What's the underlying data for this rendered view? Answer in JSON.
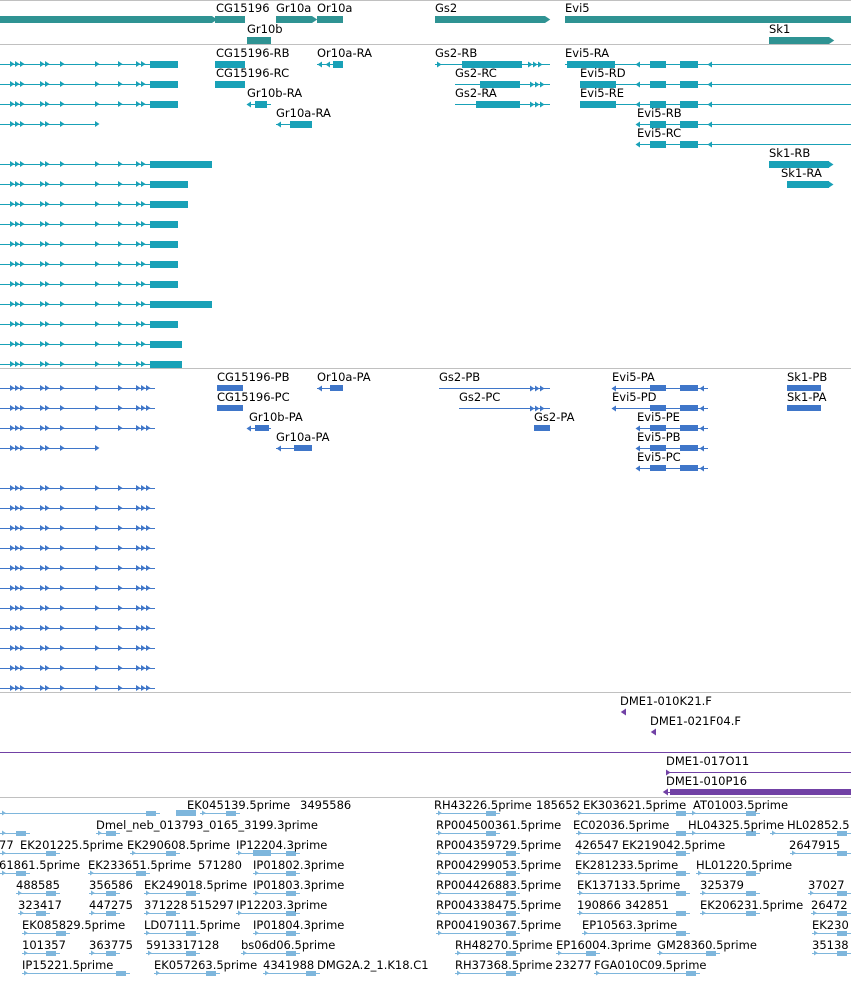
{
  "colors": {
    "gene": "#2f9393",
    "transcript": "#19a1b7",
    "protein": "#3f76c9",
    "clone": "#7141a5",
    "est": "#7eb6dc",
    "separator": "#c0c0c0"
  },
  "tracks": {
    "genes": {
      "labels": [
        "CG15196",
        "Gr10a",
        "Or10a",
        "Gs2",
        "Evi5",
        "Gr10b",
        "Sk1"
      ]
    },
    "transcripts": {
      "labels": [
        "CG15196-RB",
        "Or10a-RA",
        "Gs2-RB",
        "Evi5-RA",
        "CG15196-RC",
        "Gs2-RC",
        "Evi5-RD",
        "Gr10b-RA",
        "Gs2-RA",
        "Evi5-RE",
        "Gr10a-RA",
        "Evi5-RB",
        "Evi5-RC",
        "Sk1-RB",
        "Sk1-RA"
      ]
    },
    "proteins": {
      "labels": [
        "CG15196-PB",
        "Or10a-PA",
        "Gs2-PB",
        "Evi5-PA",
        "Sk1-PB",
        "CG15196-PC",
        "Gs2-PC",
        "Evi5-PD",
        "Sk1-PA",
        "Gr10b-PA",
        "Gs2-PA",
        "Evi5-PE",
        "Gr10a-PA",
        "Evi5-PB",
        "Evi5-PC"
      ]
    },
    "clones_a": {
      "labels": [
        "DME1-010K21.F",
        "DME1-021F04.F"
      ]
    },
    "clones_b": {
      "labels": [
        "DME1-017O11",
        "DME1-010P16"
      ]
    },
    "ests": {
      "labels": [
        "EK045139.5prime",
        "3495586",
        "RH43226.5prime",
        "185652",
        "EK303621.5prime",
        "AT01003.5prime",
        "Dmel_neb_013793_0165_3199.3prime",
        "RP004500361.5prime",
        "EC02036.5prime",
        "HL04325.5prime",
        "HL02852.5",
        "77",
        "EK201225.5prime",
        "EK290608.5prime",
        "IP12204.3prime",
        "RP004359729.5prime",
        "426547",
        "EK219042.5prime",
        "2647915",
        "61861.5prime",
        "EK233651.5prime",
        "571280",
        "IP01802.3prime",
        "RP004299053.5prime",
        "EK281233.5prime",
        "HL01220.5prime",
        "488585",
        "356586",
        "EK249018.5prime",
        "IP01803.3prime",
        "RP004426883.5prime",
        "EK137133.5prime",
        "325379",
        "37027",
        "323417",
        "447275",
        "371228",
        "515297",
        "IP12203.3prime",
        "RP004338475.5prime",
        "190866",
        "342851",
        "EK206231.5prime",
        "26472",
        "EK085829.5prime",
        "LD07111.5prime",
        "IP01804.3prime",
        "RP004190367.5prime",
        "EP10563.3prime",
        "EK230",
        "101357",
        "363775",
        "5913317128",
        "bs06d06.5prime",
        "RH48270.5prime",
        "EP16004.3prime",
        "GM28360.5prime",
        "35138",
        "IP15221.5prime",
        "EK057263.5prime",
        "4341988",
        "DMG2A.2_1.K18.C1",
        "RH37368.5prime",
        "23277",
        "FGA010C09.5prime"
      ]
    }
  }
}
